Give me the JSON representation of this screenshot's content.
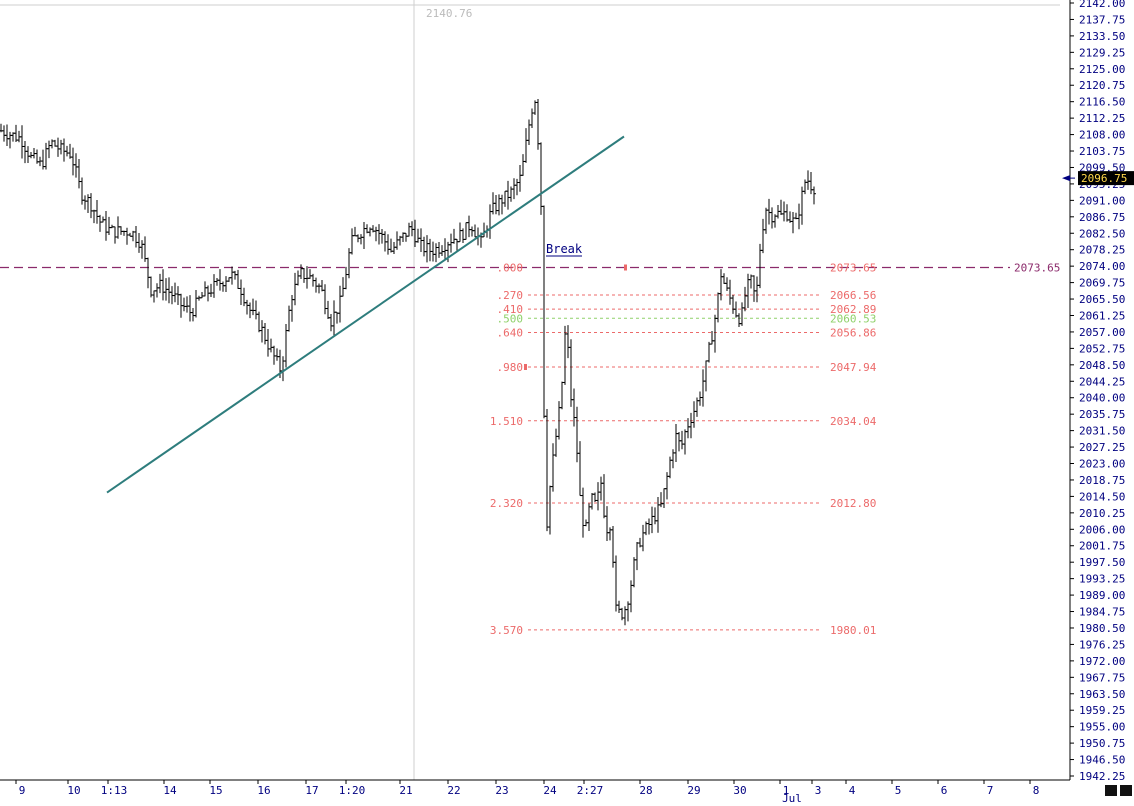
{
  "chart_data": {
    "type": "bar",
    "subtype": "ohlc-bars",
    "instrument_hint": "",
    "y_axis": {
      "min": 1942.25,
      "max": 2142.0,
      "tick_start": 1942.25,
      "tick_step": 4.25,
      "ticks": [
        "2142.00",
        "2137.75",
        "2133.50",
        "2129.25",
        "2125.00",
        "2120.75",
        "2116.50",
        "2112.25",
        "2108.00",
        "2103.75",
        "2099.50",
        "2095.25",
        "2091.00",
        "2086.75",
        "2082.50",
        "2078.25",
        "2074.00",
        "2069.75",
        "2065.50",
        "2061.25",
        "2057.00",
        "2052.75",
        "2048.50",
        "2044.25",
        "2040.00",
        "2035.75",
        "2031.50",
        "2027.25",
        "2023.00",
        "2018.75",
        "2014.50",
        "2010.25",
        "2006.00",
        "2001.75",
        "1997.50",
        "1993.25",
        "1989.00",
        "1984.75",
        "1980.50",
        "1976.25",
        "1972.00",
        "1967.75",
        "1963.50",
        "1959.25",
        "1955.00",
        "1950.75",
        "1946.50",
        "1942.25"
      ]
    },
    "x_axis": {
      "labels": [
        "9",
        "10",
        "1:13",
        "14",
        "15",
        "16",
        "17",
        "1:20",
        "21",
        "22",
        "23",
        "24",
        "2:27",
        "28",
        "29",
        "30",
        "1",
        "3",
        "4",
        "5",
        "6",
        "7",
        "8"
      ],
      "month_label": "Jul"
    },
    "last_price": "2096.75",
    "crosshair_value": "2140.76",
    "horizontal_level": {
      "value": 2073.65,
      "label": "2073.65"
    },
    "annotation": "Break",
    "trendline": {
      "from": {
        "bar": 0,
        "price": 2015.5
      },
      "to": {
        "bar": 0,
        "price": 2107.5
      }
    },
    "fib_levels": [
      {
        "ratio": ".000",
        "price": "2073.65"
      },
      {
        "ratio": ".270",
        "price": "2066.56"
      },
      {
        "ratio": ".410",
        "price": "2062.89"
      },
      {
        "ratio": ".500",
        "price": "2060.53"
      },
      {
        "ratio": ".640",
        "price": "2056.86"
      },
      {
        "ratio": ".980",
        "price": "2047.94"
      },
      {
        "ratio": "1.510",
        "price": "2034.04"
      },
      {
        "ratio": "2.320",
        "price": "2012.80"
      },
      {
        "ratio": "3.570",
        "price": "1980.01"
      }
    ],
    "price_path": [
      [
        0,
        2109
      ],
      [
        10,
        2108
      ],
      [
        20,
        2107
      ],
      [
        30,
        2102
      ],
      [
        40,
        2100
      ],
      [
        50,
        2106
      ],
      [
        60,
        2104
      ],
      [
        70,
        2103
      ],
      [
        80,
        2093
      ],
      [
        90,
        2090
      ],
      [
        100,
        2085
      ],
      [
        110,
        2083
      ],
      [
        120,
        2083
      ],
      [
        130,
        2083
      ],
      [
        140,
        2080
      ],
      [
        150,
        2068
      ],
      [
        160,
        2069
      ],
      [
        170,
        2067
      ],
      [
        180,
        2064
      ],
      [
        190,
        2062
      ],
      [
        200,
        2066
      ],
      [
        210,
        2068
      ],
      [
        220,
        2070
      ],
      [
        230,
        2072
      ],
      [
        240,
        2068
      ],
      [
        250,
        2062
      ],
      [
        260,
        2058
      ],
      [
        270,
        2052
      ],
      [
        280,
        2047
      ],
      [
        290,
        2066
      ],
      [
        300,
        2072
      ],
      [
        310,
        2071
      ],
      [
        320,
        2068
      ],
      [
        330,
        2060
      ],
      [
        340,
        2065
      ],
      [
        350,
        2080
      ],
      [
        360,
        2083
      ],
      [
        370,
        2085
      ],
      [
        380,
        2082
      ],
      [
        390,
        2078
      ],
      [
        400,
        2081
      ],
      [
        410,
        2084
      ],
      [
        420,
        2079
      ],
      [
        430,
        2078
      ],
      [
        440,
        2079
      ],
      [
        450,
        2081
      ],
      [
        460,
        2082
      ],
      [
        470,
        2085
      ],
      [
        480,
        2080
      ],
      [
        490,
        2088
      ],
      [
        500,
        2091
      ],
      [
        510,
        2093
      ],
      [
        520,
        2097
      ],
      [
        530,
        2114
      ],
      [
        535,
        2118
      ],
      [
        540,
        2090
      ],
      [
        542,
        2052
      ],
      [
        545,
        2005
      ],
      [
        550,
        2020
      ],
      [
        555,
        2030
      ],
      [
        560,
        2040
      ],
      [
        565,
        2060
      ],
      [
        570,
        2040
      ],
      [
        575,
        2030
      ],
      [
        580,
        2010
      ],
      [
        585,
        2006
      ],
      [
        590,
        2014
      ],
      [
        595,
        2012
      ],
      [
        600,
        2018
      ],
      [
        605,
        2006
      ],
      [
        610,
        2008
      ],
      [
        615,
        1985
      ],
      [
        620,
        1984
      ],
      [
        625,
        1986
      ],
      [
        630,
        1992
      ],
      [
        635,
        2000
      ],
      [
        640,
        2004
      ],
      [
        645,
        2006
      ],
      [
        650,
        2008
      ],
      [
        655,
        2010
      ],
      [
        660,
        2012
      ],
      [
        665,
        2018
      ],
      [
        670,
        2025
      ],
      [
        675,
        2030
      ],
      [
        680,
        2027
      ],
      [
        685,
        2032
      ],
      [
        690,
        2035
      ],
      [
        695,
        2038
      ],
      [
        700,
        2042
      ],
      [
        705,
        2048
      ],
      [
        710,
        2055
      ],
      [
        715,
        2062
      ],
      [
        720,
        2072
      ],
      [
        725,
        2068
      ],
      [
        730,
        2065
      ],
      [
        735,
        2062
      ],
      [
        740,
        2060
      ],
      [
        745,
        2068
      ],
      [
        750,
        2070
      ],
      [
        755,
        2065
      ],
      [
        760,
        2082
      ],
      [
        765,
        2089
      ],
      [
        770,
        2087
      ],
      [
        775,
        2088
      ],
      [
        780,
        2087
      ],
      [
        785,
        2088
      ],
      [
        790,
        2086
      ],
      [
        795,
        2085
      ],
      [
        800,
        2091
      ],
      [
        805,
        2097
      ],
      [
        810,
        2095
      ],
      [
        815,
        2094
      ]
    ]
  },
  "colors": {
    "bars": "#000000",
    "axis_text": "#000080",
    "trendline": "#2e7d7d",
    "level_line": "#8b2a6b",
    "fib": "#ec6a6a",
    "fib_500": "#8fd16a",
    "grid_vertical": "#cfcfcf"
  }
}
